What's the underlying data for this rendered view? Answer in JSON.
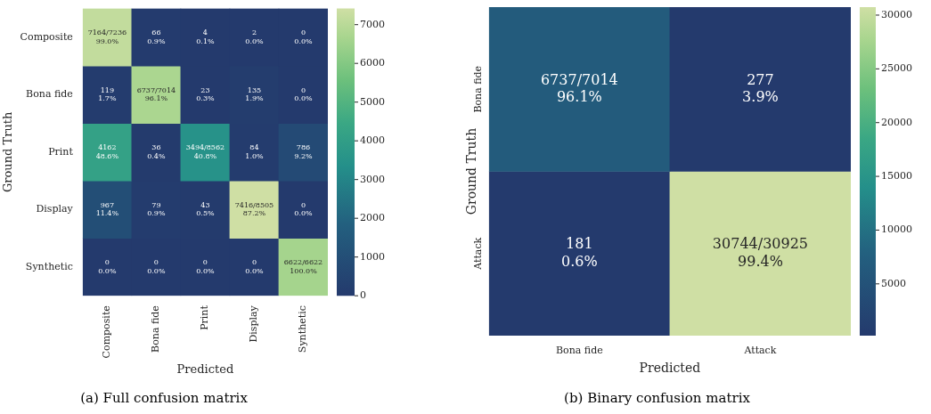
{
  "chart_data": [
    {
      "type": "heatmap",
      "title": "(a) Full confusion matrix",
      "xlabel": "Predicted",
      "ylabel": "Ground Truth",
      "categories": [
        "Composite",
        "Bona fide",
        "Print",
        "Display",
        "Synthetic"
      ],
      "y_categories": [
        "Composite",
        "Bona fide",
        "Print",
        "Display",
        "Synthetic"
      ],
      "cells": [
        [
          7164,
          66,
          4,
          2,
          0
        ],
        [
          119,
          6737,
          23,
          135,
          0
        ],
        [
          4162,
          36,
          3494,
          84,
          786
        ],
        [
          967,
          79,
          43,
          7416,
          0
        ],
        [
          0,
          0,
          0,
          0,
          6622
        ]
      ],
      "cell_labels": [
        [
          "7164/7236\n99.0%",
          "66\n0.9%",
          "4\n0.1%",
          "2\n0.0%",
          "0\n0.0%"
        ],
        [
          "119\n1.7%",
          "6737/7014\n96.1%",
          "23\n0.3%",
          "135\n1.9%",
          "0\n0.0%"
        ],
        [
          "4162\n48.6%",
          "36\n0.4%",
          "3494/8562\n40.8%",
          "84\n1.0%",
          "786\n9.2%"
        ],
        [
          "967\n11.4%",
          "79\n0.9%",
          "43\n0.5%",
          "7416/8505\n87.2%",
          "0\n0.0%"
        ],
        [
          "0\n0.0%",
          "0\n0.0%",
          "0\n0.0%",
          "0\n0.0%",
          "6622/6622\n100.0%"
        ]
      ],
      "clim": [
        0,
        7416
      ],
      "cticks": [
        0,
        1000,
        2000,
        3000,
        4000,
        5000,
        6000,
        7000
      ]
    },
    {
      "type": "heatmap",
      "title": "(b) Binary confusion matrix",
      "xlabel": "Predicted",
      "ylabel": "Ground Truth",
      "categories": [
        "Bona fide",
        "Attack"
      ],
      "y_categories": [
        "Bona fide",
        "Attack"
      ],
      "cells": [
        [
          6737,
          277
        ],
        [
          181,
          30744
        ]
      ],
      "cell_labels": [
        [
          "6737/7014\n96.1%",
          "277\n3.9%"
        ],
        [
          "181\n0.6%",
          "30744/30925\n99.4%"
        ]
      ],
      "clim": [
        181,
        30744
      ],
      "cticks": [
        5000,
        10000,
        15000,
        20000,
        25000,
        30000
      ]
    }
  ]
}
